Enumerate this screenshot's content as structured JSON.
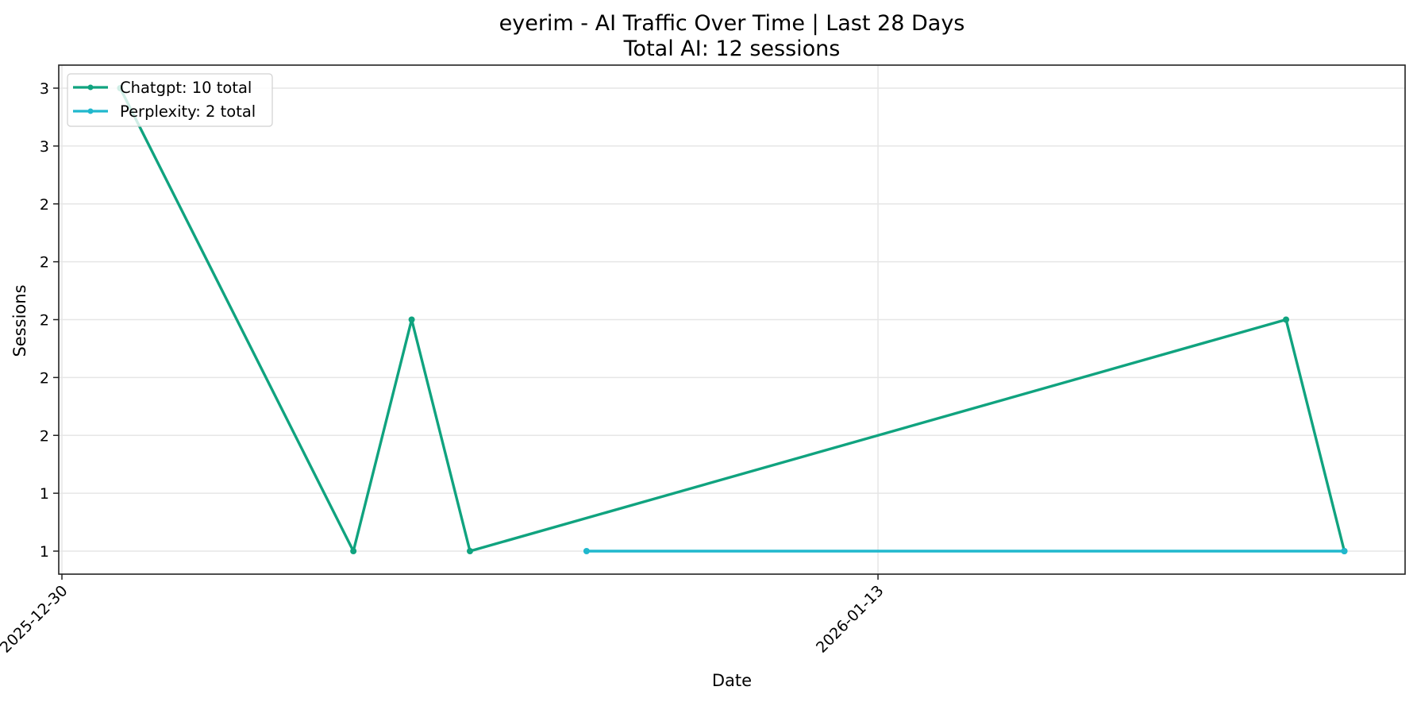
{
  "chart_data": {
    "type": "line",
    "title": "eyerim - AI Traffic Over Time | Last 28 Days",
    "subtitle": "Total AI: 12 sessions",
    "xlabel": "Date",
    "ylabel": "Sessions",
    "x_tick_labels": [
      "2025-12-30",
      "2026-01-13"
    ],
    "y_tick_values": [
      1.0,
      1.25,
      1.5,
      1.75,
      2.0,
      2.25,
      2.5,
      2.75,
      3.0
    ],
    "y_tick_labels": [
      "1",
      "1",
      "2",
      "2",
      "2",
      "2",
      "2",
      "3",
      "3"
    ],
    "ylim": [
      0.92,
      3.09
    ],
    "xlim": [
      "2025-12-29",
      "2026-01-23"
    ],
    "grid": true,
    "legend_position": "upper left",
    "series": [
      {
        "name": "Chatgpt",
        "legend_label": "Chatgpt: 10 total",
        "color": "#10A37F",
        "x": [
          "2025-12-31",
          "2026-01-04",
          "2026-01-05",
          "2026-01-06",
          "2026-01-20",
          "2026-01-21"
        ],
        "values": [
          3,
          1,
          2,
          1,
          2,
          1
        ]
      },
      {
        "name": "Perplexity",
        "legend_label": "Perplexity: 2 total",
        "color": "#20B8CD",
        "x": [
          "2026-01-08",
          "2026-01-21"
        ],
        "values": [
          1,
          1
        ]
      }
    ]
  }
}
